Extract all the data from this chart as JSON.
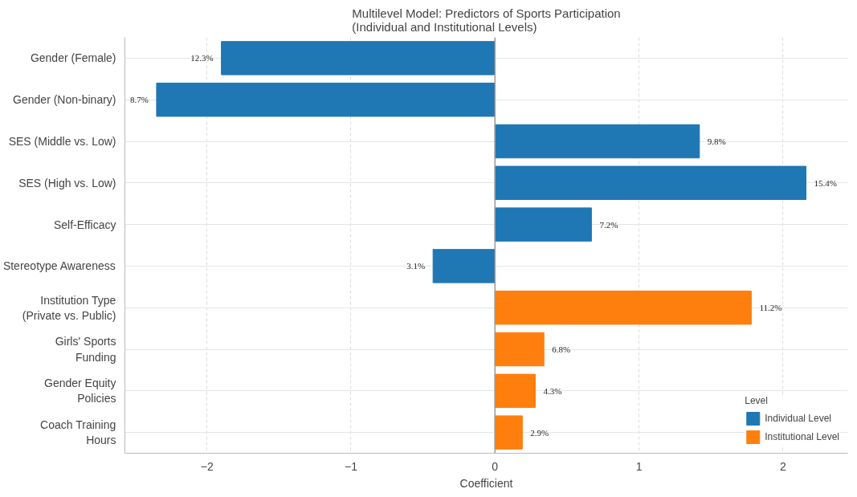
{
  "chart_data": {
    "type": "bar",
    "orientation": "horizontal",
    "title": "Multilevel Model: Predictors of Sports Participation\n(Individual and Institutional Levels)",
    "xlabel": "Coefficient",
    "legend_title": "Level",
    "categories": [
      "Gender (Female)",
      "Gender (Non-binary)",
      "SES (Middle vs. Low)",
      "SES (High vs. Low)",
      "Self-Efficacy",
      "Stereotype Awareness",
      "Institution Type\n(Private vs. Public)",
      "Girls' Sports\nFunding",
      "Gender Equity\nPolicies",
      "Coach Training\nHours"
    ],
    "series": [
      {
        "name": "Individual Level",
        "color": "#1f77b4",
        "values": [
          -1.9,
          -2.35,
          1.42,
          2.16,
          0.67,
          -0.43,
          null,
          null,
          null,
          null
        ]
      },
      {
        "name": "Institutional Level",
        "color": "#ff7f0e",
        "values": [
          null,
          null,
          null,
          null,
          null,
          null,
          1.78,
          0.34,
          0.28,
          0.19
        ]
      }
    ],
    "value_labels": [
      "12.3%",
      "8.7%",
      "9.8%",
      "15.4%",
      "7.2%",
      "3.1%",
      "11.2%",
      "6.8%",
      "4.3%",
      "2.9%"
    ],
    "xlim": [
      -2.57,
      2.45
    ],
    "xticks": [
      {
        "value": -2,
        "label": "−2"
      },
      {
        "value": -1,
        "label": "−1"
      },
      0,
      1,
      2
    ],
    "ref_lines": [
      {
        "axis": "x",
        "value": 0,
        "color": "#999999"
      }
    ],
    "grid": true,
    "legend": "bottom right"
  }
}
